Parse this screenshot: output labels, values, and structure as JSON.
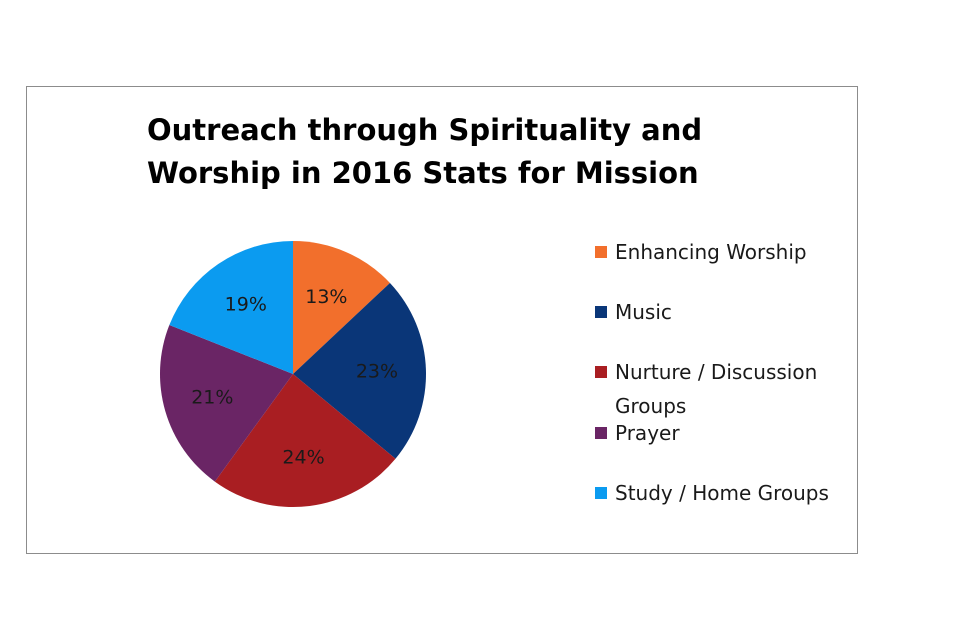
{
  "chart_data": {
    "type": "pie",
    "title_lines": [
      "Outreach through Spirituality and",
      "Worship in 2016 Stats for Mission"
    ],
    "categories": [
      "Enhancing Worship",
      "Music",
      "Nurture / Discussion Groups",
      "Prayer",
      "Study / Home Groups"
    ],
    "values": [
      13,
      23,
      24,
      21,
      19
    ],
    "data_labels": [
      "13%",
      "23%",
      "24%",
      "21%",
      "19%"
    ],
    "colors": [
      "#F26F2C",
      "#0A3678",
      "#A91E22",
      "#6A2565",
      "#0B9BF0"
    ],
    "legend_position": "right"
  }
}
